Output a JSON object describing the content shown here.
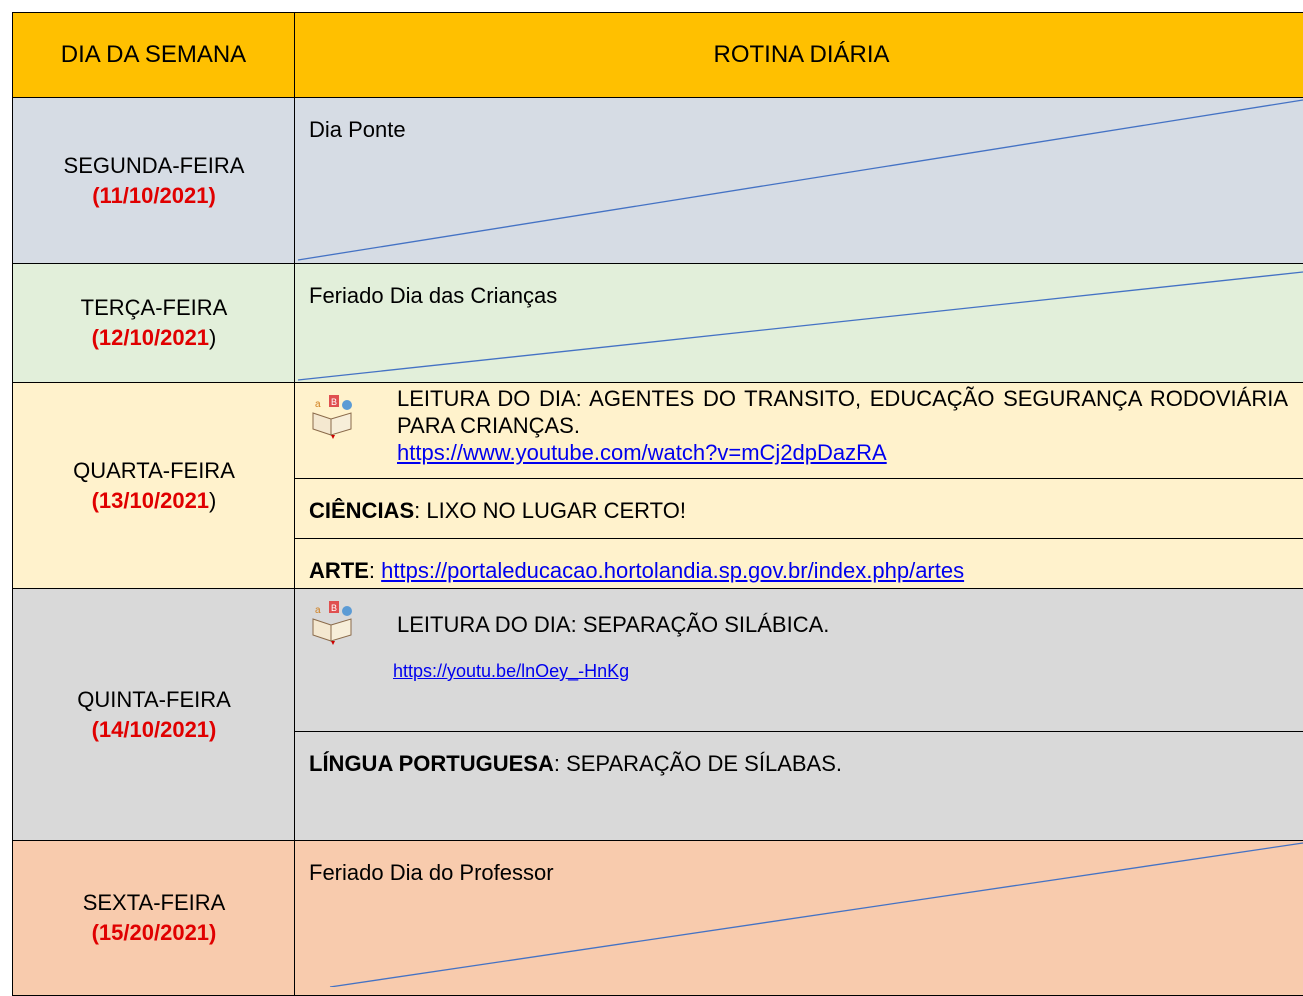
{
  "header": {
    "day": "DIA DA SEMANA",
    "routine": "ROTINA DIÁRIA"
  },
  "rows": [
    {
      "day": "SEGUNDA-FEIRA",
      "date": "(11/10/2021)",
      "entries": [
        {
          "text": "Dia Ponte"
        }
      ]
    },
    {
      "day": "TERÇA-FEIRA",
      "date": "(12/10/2021",
      "date_tail": ")",
      "entries": [
        {
          "text": "Feriado Dia das Crianças"
        }
      ]
    },
    {
      "day": "QUARTA-FEIRA",
      "date": "(13/10/2021",
      "date_tail": ")",
      "entries": [
        {
          "text": "LEITURA DO DIA: AGENTES DO TRANSITO, EDUCAÇÃO SEGURANÇA RODOVIÁRIA PARA CRIANÇAS.",
          "link": "https://www.youtube.com/watch?v=mCj2dpDazRA"
        },
        {
          "label": "CIÊNCIAS",
          "text": ": LIXO NO LUGAR CERTO!"
        },
        {
          "label": "ARTE",
          "text": ":",
          "link": "https://portaleducacao.hortolandia.sp.gov.br/index.php/artes"
        }
      ]
    },
    {
      "day": "QUINTA-FEIRA",
      "date": "(14/10/2021)",
      "entries": [
        {
          "text": "LEITURA DO DIA: SEPARAÇÃO SILÁBICA.",
          "link": "https://youtu.be/lnOey_-HnKg"
        },
        {
          "label": "LÍNGUA PORTUGUESA",
          "text": ": SEPARAÇÃO DE SÍLABAS."
        }
      ]
    },
    {
      "day": "SEXTA-FEIRA",
      "date": "(15/20/2021)",
      "entries": [
        {
          "text": "Feriado Dia do Professor"
        }
      ]
    }
  ]
}
